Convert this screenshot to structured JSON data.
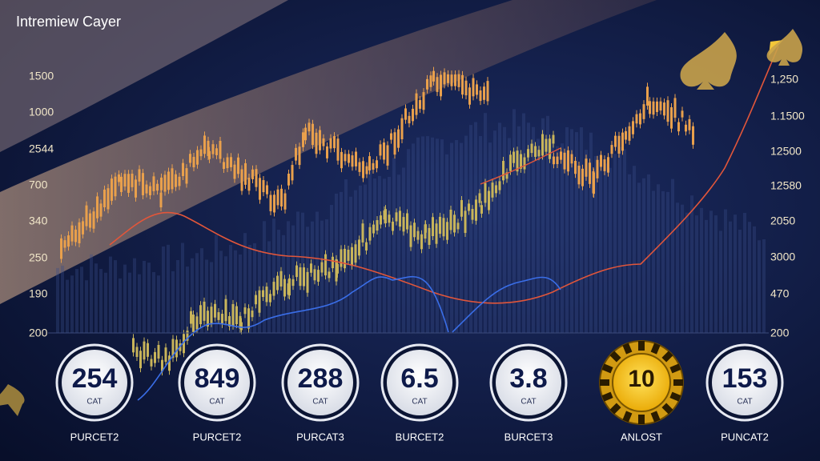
{
  "header": {
    "title": "Intremiew Cayer"
  },
  "left_axis": [
    "1500",
    "1000",
    "2544",
    "700",
    "340",
    "250",
    "190",
    "200"
  ],
  "right_axis": [
    "1,250",
    "1.1500",
    "12500",
    "12580",
    "2050",
    "3000",
    "470",
    "200"
  ],
  "chips": [
    {
      "value": "254",
      "sub": "CAT",
      "label": "PURCET2"
    },
    {
      "value": "849",
      "sub": "CAT",
      "label": "PURCET2"
    },
    {
      "value": "288",
      "sub": "CAT",
      "label": "PURCAT3"
    },
    {
      "value": "6.5",
      "sub": "CAT",
      "label": "BURCET2"
    },
    {
      "value": "3.8",
      "sub": "CAT",
      "label": "BURCET3"
    },
    {
      "value": "10",
      "label": "ANLOST"
    },
    {
      "value": "153",
      "sub": "CAT",
      "label": "PUNCAT2"
    }
  ]
}
